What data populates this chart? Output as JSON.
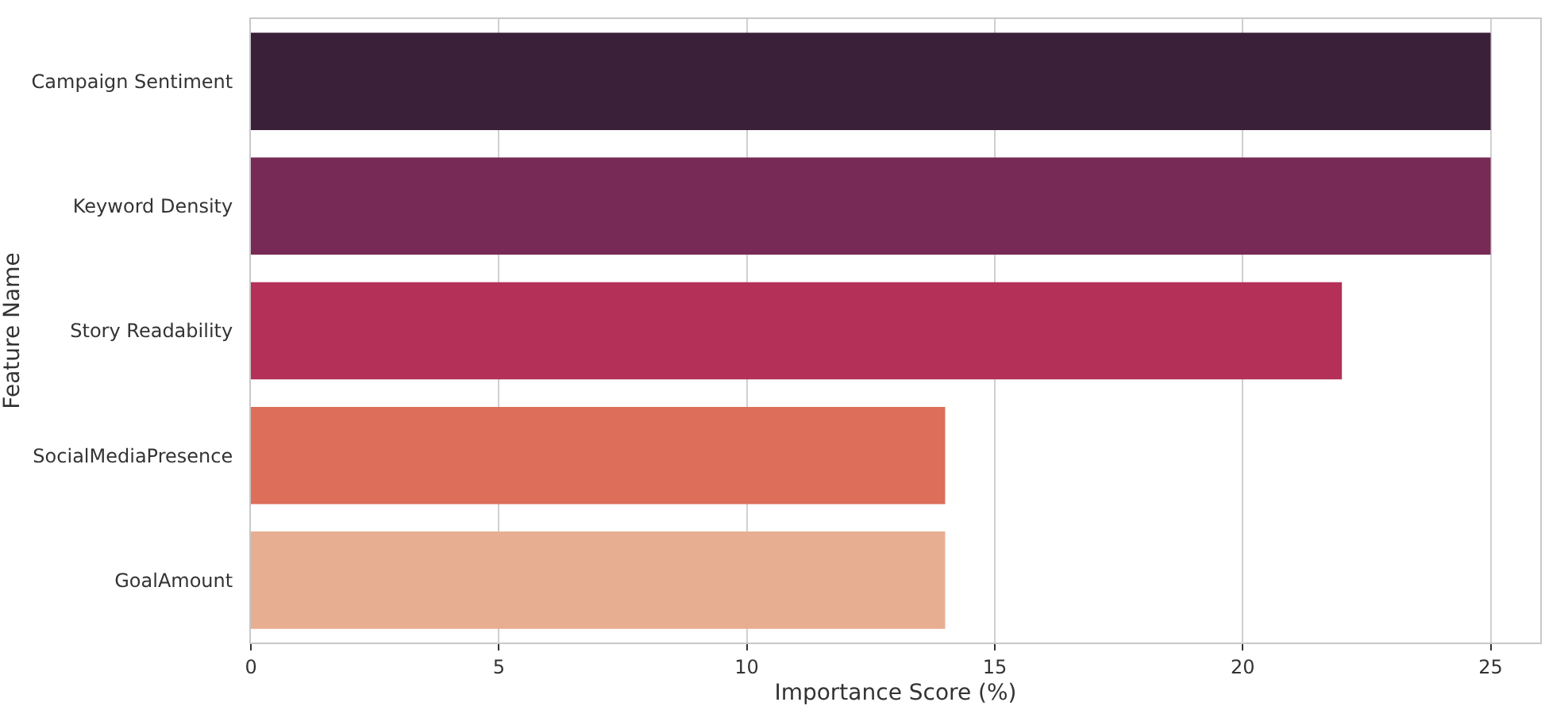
{
  "chart_data": {
    "type": "bar",
    "orientation": "horizontal",
    "xlabel": "Importance Score (%)",
    "ylabel": "Feature Name",
    "categories": [
      "Campaign Sentiment",
      "Keyword Density",
      "Story Readability",
      "SocialMediaPresence",
      "GoalAmount"
    ],
    "values": [
      25,
      25,
      22,
      14,
      14
    ],
    "colors": [
      "#3a2039",
      "#782a56",
      "#b43058",
      "#dc6e5a",
      "#e8ae92"
    ],
    "xlim": [
      0,
      26
    ],
    "xticks": [
      0,
      5,
      10,
      15,
      20,
      25
    ],
    "grid": "x"
  }
}
